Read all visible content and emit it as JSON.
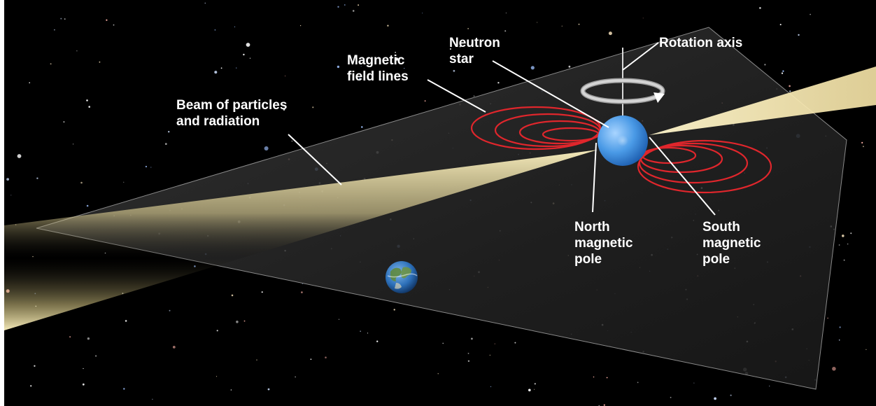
{
  "labels": {
    "beam_line1": "Beam of particles",
    "beam_line2": "and radiation",
    "field_line1": "Magnetic",
    "field_line2": "field lines",
    "neutron_line1": "Neutron",
    "neutron_line2": "star",
    "rotation": "Rotation axis",
    "north_line1": "North",
    "north_line2": "magnetic",
    "north_line3": "pole",
    "south_line1": "South",
    "south_line2": "magnetic",
    "south_line3": "pole"
  },
  "colors": {
    "background": "#000000",
    "plane": "#2a2a2a",
    "beam": "#f3e6a8",
    "field_lines": "#e0262c",
    "neutron_star": "#3d8fdc",
    "rotation_arrow": "#cfcfcf",
    "label_text": "#ffffff"
  },
  "icons": {
    "earth": "earth-globe-icon",
    "rotation_arrow": "curved-rotation-arrow-icon"
  }
}
